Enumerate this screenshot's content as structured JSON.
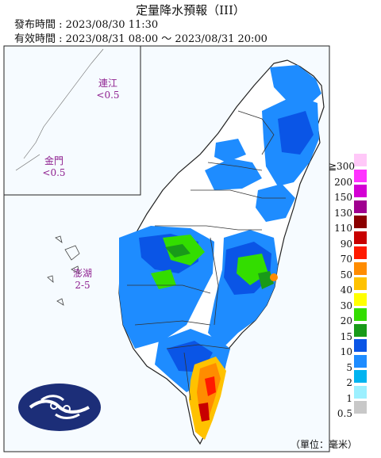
{
  "header": {
    "title": "定量降水預報（III）",
    "issue_line": "發布時間 : 2023/08/30 11:30",
    "valid_line": "有效時間 : 2023/08/31 08:00 ～ 2023/08/31 20:00"
  },
  "places": [
    {
      "name": "連江",
      "value": "<0.5"
    },
    {
      "name": "金門",
      "value": "<0.5"
    },
    {
      "name": "澎湖",
      "value": "2-5"
    }
  ],
  "legend": {
    "items": [
      {
        "label": "≧300",
        "color": "#ffc8f8"
      },
      {
        "label": "200",
        "color": "#ff33ff"
      },
      {
        "label": "150",
        "color": "#d400d4"
      },
      {
        "label": "130",
        "color": "#a0008f"
      },
      {
        "label": "110",
        "color": "#8b0000"
      },
      {
        "label": "90",
        "color": "#c80000"
      },
      {
        "label": "70",
        "color": "#ff1a00"
      },
      {
        "label": "50",
        "color": "#ff8c00"
      },
      {
        "label": "40",
        "color": "#ffc200"
      },
      {
        "label": "30",
        "color": "#ffff00"
      },
      {
        "label": "20",
        "color": "#33dd00"
      },
      {
        "label": "15",
        "color": "#199a19"
      },
      {
        "label": "10",
        "color": "#0a55e6"
      },
      {
        "label": "5",
        "color": "#1e8cff"
      },
      {
        "label": "2",
        "color": "#00b4f0"
      },
      {
        "label": "1",
        "color": "#9cf0ff"
      },
      {
        "label": "0.5",
        "color": "#c8c8c8"
      }
    ],
    "unit": "（單位：毫米）"
  },
  "colors": {
    "sea": "#f3f9ff",
    "land_dry": "#ffffff",
    "border": "#222222",
    "logo": "#1c2e78"
  }
}
